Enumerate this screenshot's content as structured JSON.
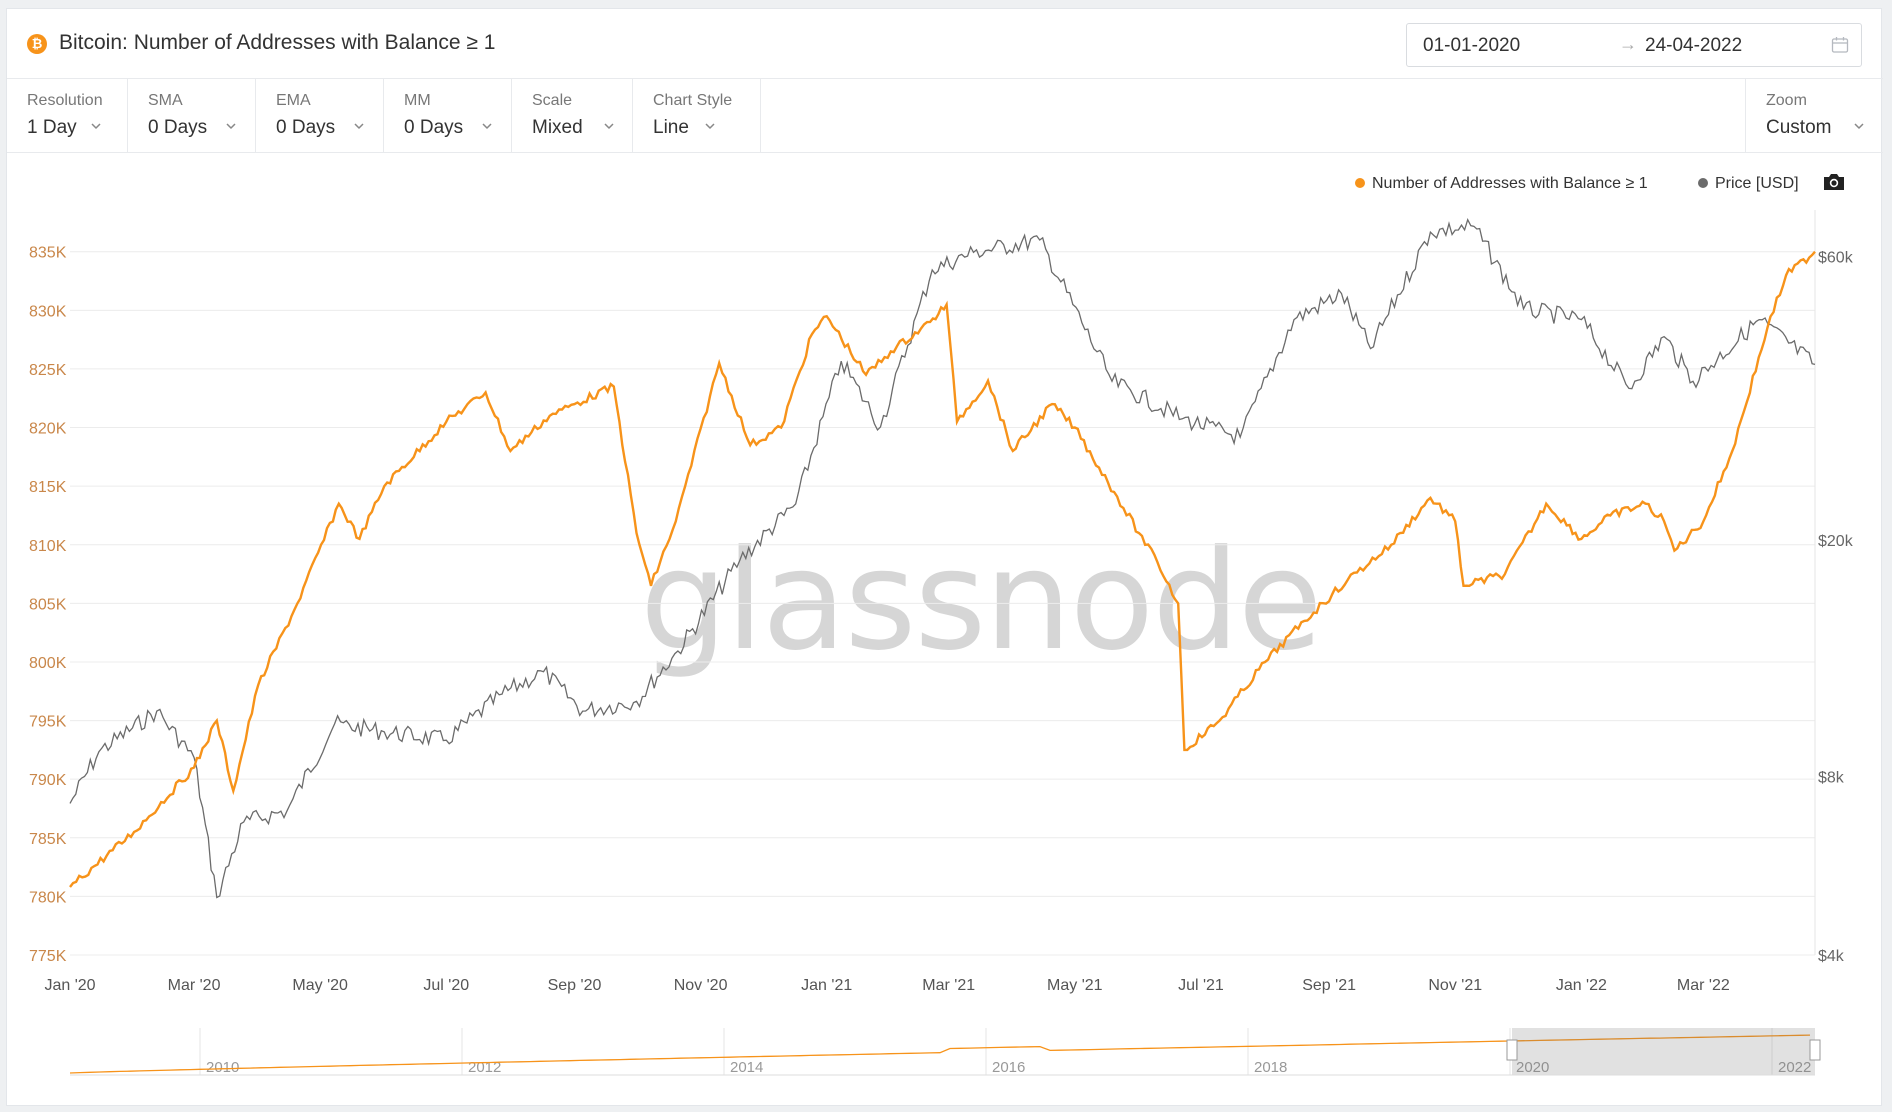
{
  "header": {
    "title": "Bitcoin: Number of Addresses with Balance ≥ 1",
    "coin_icon": "bitcoin-icon",
    "date_start": "01-01-2020",
    "date_arrow": "→",
    "date_end": "24-04-2022"
  },
  "controls": [
    {
      "label": "Resolution",
      "value": "1 Day"
    },
    {
      "label": "SMA",
      "value": "0 Days"
    },
    {
      "label": "EMA",
      "value": "0 Days"
    },
    {
      "label": "MM",
      "value": "0 Days"
    },
    {
      "label": "Scale",
      "value": "Mixed"
    },
    {
      "label": "Chart Style",
      "value": "Line"
    }
  ],
  "zoom": {
    "label": "Zoom",
    "value": "Custom"
  },
  "legend": {
    "addresses": "Number of Addresses with Balance ≥ 1",
    "price": "Price [USD]"
  },
  "watermark": "glassnode",
  "colors": {
    "addresses": "#f7931a",
    "price": "#6b6b6b",
    "accent": "#f7931a"
  },
  "chart_data": {
    "type": "line",
    "title": "Bitcoin: Number of Addresses with Balance ≥ 1",
    "x_range": [
      "2020-01-01",
      "2022-04-24"
    ],
    "x_tick_labels": [
      "Jan '20",
      "Mar '20",
      "May '20",
      "Jul '20",
      "Sep '20",
      "Nov '20",
      "Jan '21",
      "Mar '21",
      "May '21",
      "Jul '21",
      "Sep '21",
      "Nov '21",
      "Jan '22",
      "Mar '22"
    ],
    "y_left": {
      "ticks": [
        "835K",
        "830K",
        "825K",
        "820K",
        "815K",
        "810K",
        "805K",
        "800K",
        "795K",
        "790K",
        "785K",
        "780K",
        "775K"
      ],
      "range": [
        775000,
        836000
      ]
    },
    "y_right": {
      "ticks": [
        "$60k",
        "$20k",
        "$8k",
        "$4k"
      ],
      "range": [
        4000,
        64000
      ],
      "scale": "log"
    },
    "series": [
      {
        "name": "Number of Addresses with Balance ≥ 1",
        "axis": "left",
        "points": [
          [
            "2020-01-01",
            780800
          ],
          [
            "2020-02-01",
            785500
          ],
          [
            "2020-03-01",
            791000
          ],
          [
            "2020-03-12",
            795000
          ],
          [
            "2020-03-20",
            789000
          ],
          [
            "2020-04-01",
            798000
          ],
          [
            "2020-04-20",
            805000
          ],
          [
            "2020-05-10",
            813500
          ],
          [
            "2020-05-20",
            810500
          ],
          [
            "2020-06-01",
            815000
          ],
          [
            "2020-07-01",
            820500
          ],
          [
            "2020-07-20",
            823000
          ],
          [
            "2020-08-01",
            818000
          ],
          [
            "2020-08-20",
            821000
          ],
          [
            "2020-09-01",
            822000
          ],
          [
            "2020-09-20",
            823500
          ],
          [
            "2020-10-01",
            811000
          ],
          [
            "2020-10-08",
            806500
          ],
          [
            "2020-10-20",
            812000
          ],
          [
            "2020-11-10",
            825500
          ],
          [
            "2020-11-25",
            818500
          ],
          [
            "2020-12-10",
            820000
          ],
          [
            "2020-12-25",
            828000
          ],
          [
            "2021-01-01",
            829500
          ],
          [
            "2021-01-20",
            824500
          ],
          [
            "2021-02-01",
            826500
          ],
          [
            "2021-02-20",
            829000
          ],
          [
            "2021-02-28",
            830500
          ],
          [
            "2021-03-05",
            820500
          ],
          [
            "2021-03-20",
            824000
          ],
          [
            "2021-04-01",
            818000
          ],
          [
            "2021-04-20",
            822000
          ],
          [
            "2021-05-01",
            820000
          ],
          [
            "2021-05-20",
            814500
          ],
          [
            "2021-06-01",
            811000
          ],
          [
            "2021-06-10",
            808500
          ],
          [
            "2021-06-20",
            805000
          ],
          [
            "2021-06-23",
            792500
          ],
          [
            "2021-07-10",
            795000
          ],
          [
            "2021-08-01",
            800000
          ],
          [
            "2021-08-20",
            803500
          ],
          [
            "2021-09-10",
            807000
          ],
          [
            "2021-10-01",
            810000
          ],
          [
            "2021-10-20",
            814000
          ],
          [
            "2021-11-01",
            812000
          ],
          [
            "2021-11-05",
            806500
          ],
          [
            "2021-11-25",
            807500
          ],
          [
            "2021-12-15",
            813500
          ],
          [
            "2022-01-01",
            810500
          ],
          [
            "2022-01-15",
            812500
          ],
          [
            "2022-02-01",
            813500
          ],
          [
            "2022-02-10",
            812000
          ],
          [
            "2022-02-15",
            809500
          ],
          [
            "2022-03-01",
            812000
          ],
          [
            "2022-03-15",
            818000
          ],
          [
            "2022-04-01",
            828500
          ],
          [
            "2022-04-10",
            833000
          ],
          [
            "2022-04-24",
            835000
          ]
        ]
      },
      {
        "name": "Price [USD]",
        "axis": "right",
        "points": [
          [
            "2020-01-01",
            7200
          ],
          [
            "2020-01-15",
            8800
          ],
          [
            "2020-02-12",
            10300
          ],
          [
            "2020-03-01",
            8600
          ],
          [
            "2020-03-12",
            5000
          ],
          [
            "2020-03-25",
            6700
          ],
          [
            "2020-04-15",
            7000
          ],
          [
            "2020-05-08",
            9800
          ],
          [
            "2020-06-01",
            9500
          ],
          [
            "2020-07-01",
            9200
          ],
          [
            "2020-07-28",
            11000
          ],
          [
            "2020-08-17",
            12000
          ],
          [
            "2020-09-05",
            10300
          ],
          [
            "2020-10-01",
            10700
          ],
          [
            "2020-10-21",
            13000
          ],
          [
            "2020-11-20",
            18500
          ],
          [
            "2020-12-17",
            23000
          ],
          [
            "2021-01-08",
            40000
          ],
          [
            "2021-01-27",
            31000
          ],
          [
            "2021-02-21",
            57000
          ],
          [
            "2021-03-13",
            61000
          ],
          [
            "2021-04-14",
            64000
          ],
          [
            "2021-05-19",
            37000
          ],
          [
            "2021-06-22",
            32000
          ],
          [
            "2021-07-20",
            29800
          ],
          [
            "2021-08-15",
            47000
          ],
          [
            "2021-09-07",
            52000
          ],
          [
            "2021-09-21",
            42000
          ],
          [
            "2021-10-20",
            66000
          ],
          [
            "2021-11-10",
            67500
          ],
          [
            "2021-12-04",
            49000
          ],
          [
            "2022-01-01",
            47000
          ],
          [
            "2022-01-24",
            36000
          ],
          [
            "2022-02-10",
            44000
          ],
          [
            "2022-02-24",
            37000
          ],
          [
            "2022-03-28",
            47000
          ],
          [
            "2022-04-24",
            39500
          ]
        ]
      }
    ],
    "navigator": {
      "labels": [
        "2010",
        "2012",
        "2014",
        "2016",
        "2018",
        "2020",
        "2022"
      ]
    },
    "legend_position": "top-right",
    "grid": true
  }
}
